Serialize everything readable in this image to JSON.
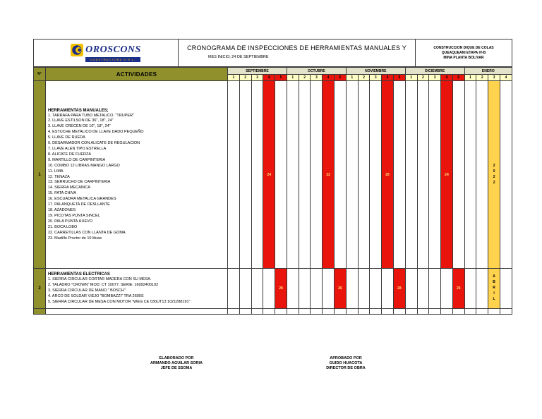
{
  "page": {
    "logo": {
      "name": "OROSCONS",
      "subtitle": "CONSTRUCTORA S.R.L."
    },
    "title": "CRONOGRAMA DE INSPECCIONES DE HERRAMIENTAS MANUALES Y",
    "subtitle": "MES INICIO; 24 DE SEPTIEMBRE",
    "project": [
      "CONSTRUCCION DIQUE DE COLAS",
      "QUEAQUEANI ETAPA IV-B",
      "MINA PLANTA BOLIVAR"
    ]
  },
  "table": {
    "col_no": "N°",
    "col_activities": "ACTIVIDADES",
    "months": [
      {
        "label": "SEPTIEMBRE",
        "weeks": [
          "1",
          "2",
          "3",
          "4",
          "5"
        ]
      },
      {
        "label": "OCTUBRE",
        "weeks": [
          "1",
          "2",
          "3",
          "4",
          "5"
        ]
      },
      {
        "label": "NOVIEMBRE",
        "weeks": [
          "1",
          "2",
          "3",
          "4",
          "5"
        ]
      },
      {
        "label": "DICIEMBRE",
        "weeks": [
          "1",
          "2",
          "3",
          "4",
          "5"
        ]
      },
      {
        "label": "ENERO",
        "weeks": [
          "1",
          "2",
          "3",
          "4"
        ]
      }
    ],
    "header_red": [
      [
        0,
        3
      ],
      [
        0,
        4
      ],
      [
        1,
        3
      ],
      [
        1,
        4
      ],
      [
        2,
        3
      ],
      [
        2,
        4
      ],
      [
        3,
        3
      ],
      [
        3,
        4
      ]
    ],
    "rows": [
      {
        "no": "1",
        "title": "HERRAMIENTAS MANUALES;",
        "items": [
          "1. TARRAFA PARA TUBO METALICO. \"TRUPER\"",
          "2. LLAVE ESTILSON  DE 36\", 18\", 24\"",
          "3. LLAVE CRECEN DE 10\", 18\", 24\"",
          "4. ESTUCHE METALICO DE LLAVE DADO PEQUEÑO",
          "5. LLAVE DE RUEDA",
          "6. DESARMADOR CON ALICATE DE REGULACION",
          "7. LLAVE ALEN TIPO ESTRELLA",
          "8. ALICATE DE FUERZA",
          "9. MARTILLO DE CARPINTERIA",
          "10. COMBO 12 LIBRAS MANGO LARGO",
          "11. LIMA",
          "12. TENAZA",
          "13. SERRUCHO DE CARPINTERIA",
          "14. SIERRA MECANICA",
          "15. PATA CHIVA",
          "16. ESCUADRA METALICA GRANDES",
          "17. PALANQUETA DE DESLLANTE",
          "18. AZADONES",
          "19. PICOTAS PUNTA SINCEL",
          "20. PALA PUNTA HUEVO",
          "21. BOCA LOBO",
          "22. CARRETILLAS CON LLANTA DE GOMA",
          "23. Martillo Proctor de 10 libras"
        ],
        "marks": [
          {
            "month": 0,
            "week": 3,
            "label": "24"
          },
          {
            "month": 1,
            "week": 3,
            "label": "22"
          },
          {
            "month": 2,
            "week": 3,
            "label": "26"
          },
          {
            "month": 3,
            "week": 3,
            "label": "24"
          }
        ],
        "special": {
          "month": 4,
          "week": 2,
          "text": "2022"
        }
      },
      {
        "no": "2",
        "title": "HERRAMIENTAS ELECTRICAS",
        "items": [
          "1. SIERRA CIRCULAR CORTAR MADERA CON SU MESA.",
          "2. TALADRO \"CROWN\" MOD: CT 10077. SERIE: 16092400102",
          "3. SIERRA CIRCULAR DE MANO \" BOSCH\"",
          "4. ARCO DE SOLDAR VIEJO \"BOMBAZZI\" TRA 2600S",
          "5. SIERRA CIRCULAR DE MESA CON MOTOR \"WEG CE 030UT13 1021288191\""
        ],
        "marks": [
          {
            "month": 0,
            "week": 4,
            "label": "28"
          },
          {
            "month": 1,
            "week": 4,
            "label": "26"
          },
          {
            "month": 2,
            "week": 4,
            "label": "28"
          },
          {
            "month": 3,
            "week": 4,
            "label": "26"
          }
        ],
        "special": {
          "month": 4,
          "week": 2,
          "text": "ABRIL"
        }
      }
    ]
  },
  "footer": {
    "elaborado": [
      "ELABORADO POR",
      "ARMANDO AGUILAR SORIA",
      "JEFE DE SSOMA"
    ],
    "aprobado": [
      "APROBADO POR",
      "GUIDO HUACOTA",
      "DIRECTOR DE OBRA"
    ]
  },
  "colors": {
    "olive": "#90902c",
    "inspection_red": "#e9150d",
    "week_bg": "#ffffc6",
    "month_bg": "#e3e3cb",
    "period_yellow": "#ffd34d",
    "mark_text": "#ffe07a",
    "logo_blue": "#1b2e8a",
    "logo_yellow": "#f2c200"
  }
}
